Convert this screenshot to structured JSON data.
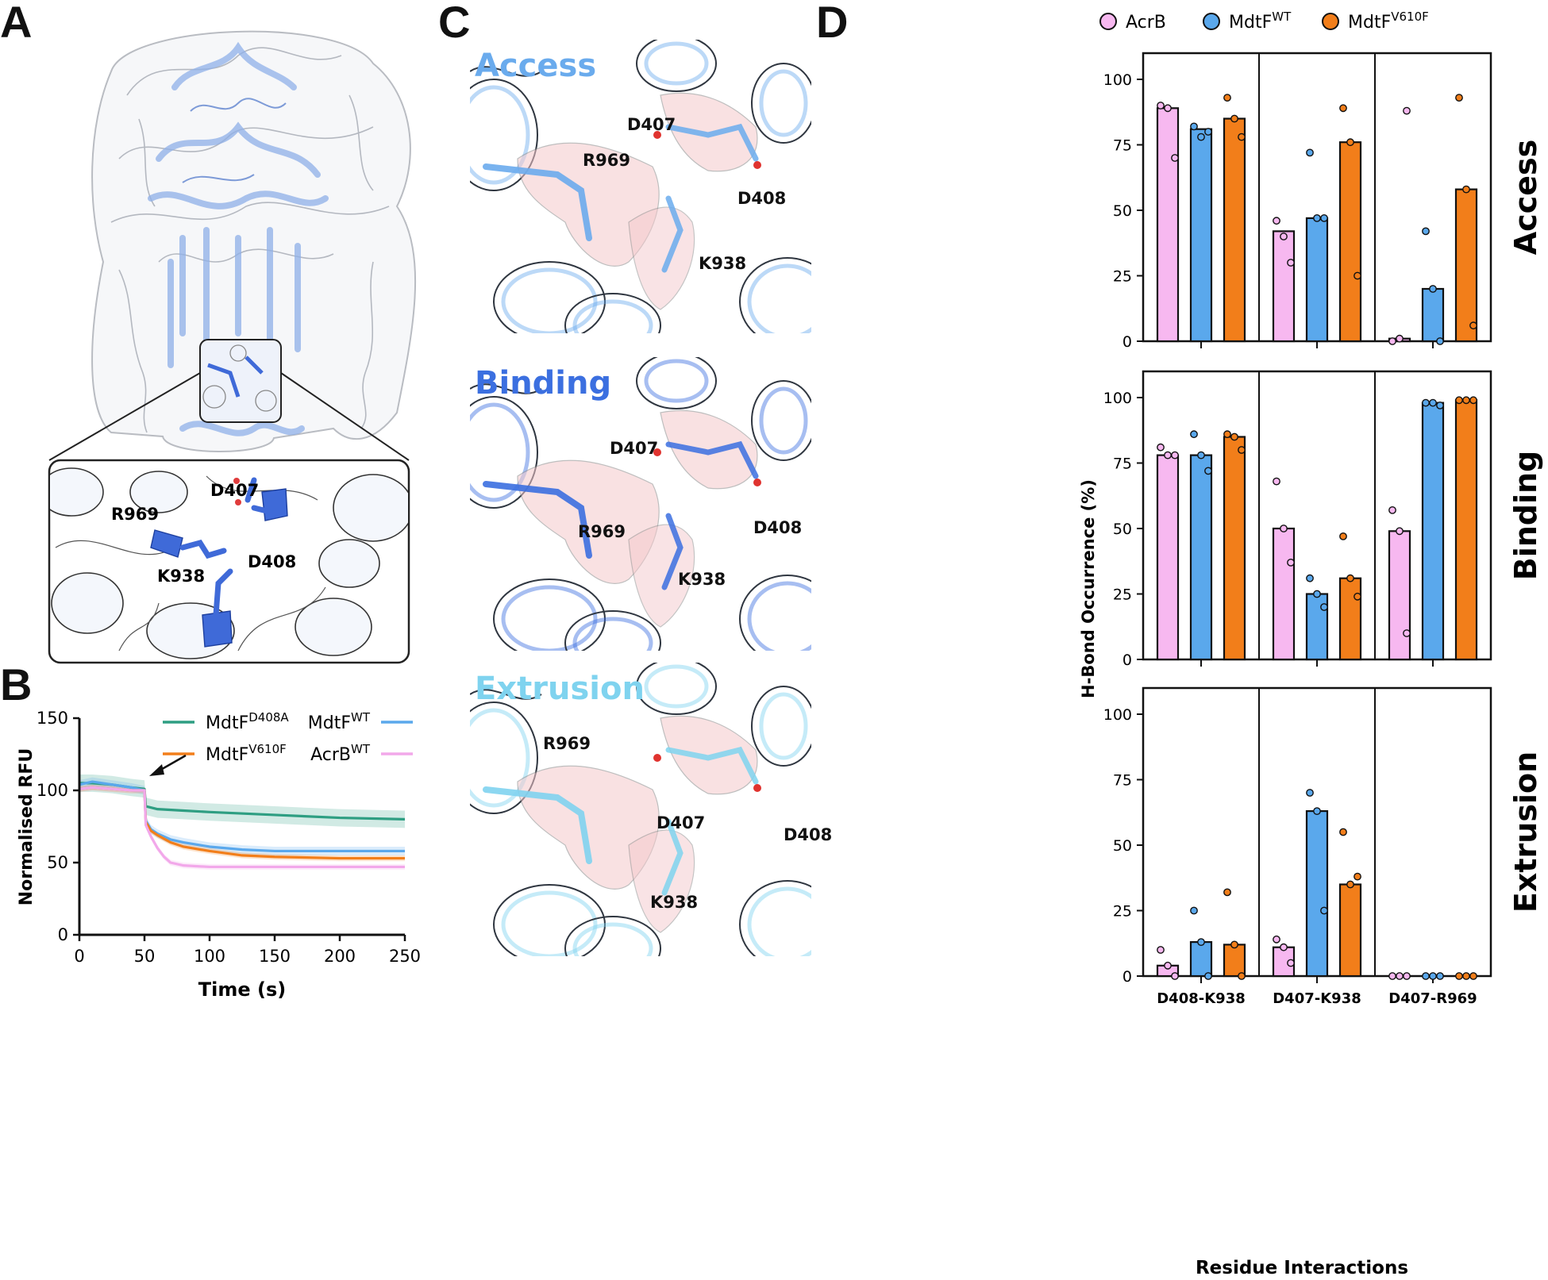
{
  "panels": {
    "a": "A",
    "b": "B",
    "c": "C",
    "d": "D"
  },
  "panel_a": {
    "zoom_residues": [
      "R969",
      "D407",
      "K938",
      "D408"
    ]
  },
  "panel_c": {
    "states": [
      {
        "title": "Access",
        "color": "#6aabed",
        "residues": [
          "D407",
          "R969",
          "D408",
          "K938"
        ]
      },
      {
        "title": "Binding",
        "color": "#3b6fe0",
        "residues": [
          "D407",
          "R969",
          "D408",
          "K938"
        ]
      },
      {
        "title": "Extrusion",
        "color": "#7fd3ef",
        "residues": [
          "R969",
          "D407",
          "D408",
          "K938"
        ]
      }
    ]
  },
  "chart_data": [
    {
      "type": "line",
      "panel": "B",
      "xlabel": "Time (s)",
      "ylabel": "Normalised RFU",
      "xlim": [
        0,
        250
      ],
      "ylim": [
        0,
        150
      ],
      "xticks": [
        0,
        50,
        100,
        150,
        200,
        250
      ],
      "yticks": [
        0,
        50,
        100,
        150
      ],
      "series": [
        {
          "name": "MdtF",
          "sup": "D408A",
          "color": "#2e9e82",
          "x": [
            0,
            10,
            25,
            40,
            50,
            51,
            60,
            80,
            100,
            150,
            200,
            250
          ],
          "y": [
            105,
            105,
            104,
            102,
            101,
            89,
            87,
            86,
            85,
            83,
            81,
            80
          ],
          "band": 6
        },
        {
          "name": "MdtF",
          "sup": "WT",
          "color": "#5aa8ec",
          "x": [
            0,
            10,
            25,
            40,
            50,
            51,
            55,
            60,
            70,
            80,
            100,
            125,
            150,
            200,
            250
          ],
          "y": [
            104,
            106,
            104,
            102,
            100,
            79,
            73,
            70,
            66,
            64,
            61,
            59,
            58,
            58,
            58
          ],
          "band": 3
        },
        {
          "name": "MdtF",
          "sup": "V610F",
          "color": "#f27e1a",
          "x": [
            0,
            10,
            25,
            40,
            50,
            51,
            55,
            60,
            70,
            80,
            100,
            125,
            150,
            200,
            250
          ],
          "y": [
            101,
            102,
            101,
            100,
            100,
            78,
            72,
            69,
            64,
            61,
            58,
            55,
            54,
            53,
            53
          ],
          "band": 2
        },
        {
          "name": "AcrB",
          "sup": "WT",
          "color": "#f2a8ea",
          "x": [
            0,
            10,
            25,
            40,
            50,
            51,
            55,
            60,
            65,
            70,
            80,
            100,
            150,
            200,
            250
          ],
          "y": [
            101,
            102,
            101,
            100,
            100,
            76,
            68,
            60,
            54,
            50,
            48,
            47,
            47,
            47,
            47
          ],
          "band": 2
        }
      ]
    },
    {
      "type": "bar",
      "panel": "D",
      "ylabel": "H-Bond Occurrence (%)",
      "xlabel": "Residue Interactions",
      "ylim": [
        0,
        110
      ],
      "yticks": [
        0,
        25,
        50,
        75,
        100
      ],
      "categories": [
        "D408-K938",
        "D407-K938",
        "D407-R969"
      ],
      "legend": [
        {
          "name": "AcrB",
          "sup": "",
          "color": "#f7b8f0"
        },
        {
          "name": "MdtF",
          "sup": "WT",
          "color": "#5aa8ec"
        },
        {
          "name": "MdtF",
          "sup": "V610F",
          "color": "#f27e1a"
        }
      ],
      "rows": [
        {
          "state": "Access",
          "bars": [
            [
              89,
              81,
              85
            ],
            [
              42,
              47,
              76
            ],
            [
              1,
              20,
              58
            ]
          ],
          "points": [
            [
              [
                90,
                89,
                70
              ],
              [
                82,
                78,
                80
              ],
              [
                93,
                85,
                78
              ]
            ],
            [
              [
                46,
                40,
                30
              ],
              [
                72,
                47,
                47
              ],
              [
                89,
                76,
                25
              ]
            ],
            [
              [
                0,
                1,
                88
              ],
              [
                42,
                20,
                0
              ],
              [
                93,
                58,
                6
              ]
            ]
          ]
        },
        {
          "state": "Binding",
          "bars": [
            [
              78,
              78,
              85
            ],
            [
              50,
              25,
              31
            ],
            [
              49,
              98,
              99
            ]
          ],
          "points": [
            [
              [
                81,
                78,
                78
              ],
              [
                86,
                78,
                72
              ],
              [
                86,
                85,
                80
              ]
            ],
            [
              [
                68,
                50,
                37
              ],
              [
                31,
                25,
                20
              ],
              [
                47,
                31,
                24
              ]
            ],
            [
              [
                57,
                49,
                10
              ],
              [
                98,
                98,
                97
              ],
              [
                99,
                99,
                99
              ]
            ]
          ]
        },
        {
          "state": "Extrusion",
          "bars": [
            [
              4,
              13,
              12
            ],
            [
              11,
              63,
              35
            ],
            [
              0,
              0,
              0
            ]
          ],
          "points": [
            [
              [
                10,
                4,
                0
              ],
              [
                25,
                13,
                0
              ],
              [
                32,
                12,
                0
              ]
            ],
            [
              [
                14,
                11,
                5
              ],
              [
                70,
                63,
                25
              ],
              [
                55,
                35,
                38
              ]
            ],
            [
              [
                0,
                0,
                0
              ],
              [
                0,
                0,
                0
              ],
              [
                0,
                0,
                0
              ]
            ]
          ]
        }
      ]
    }
  ]
}
